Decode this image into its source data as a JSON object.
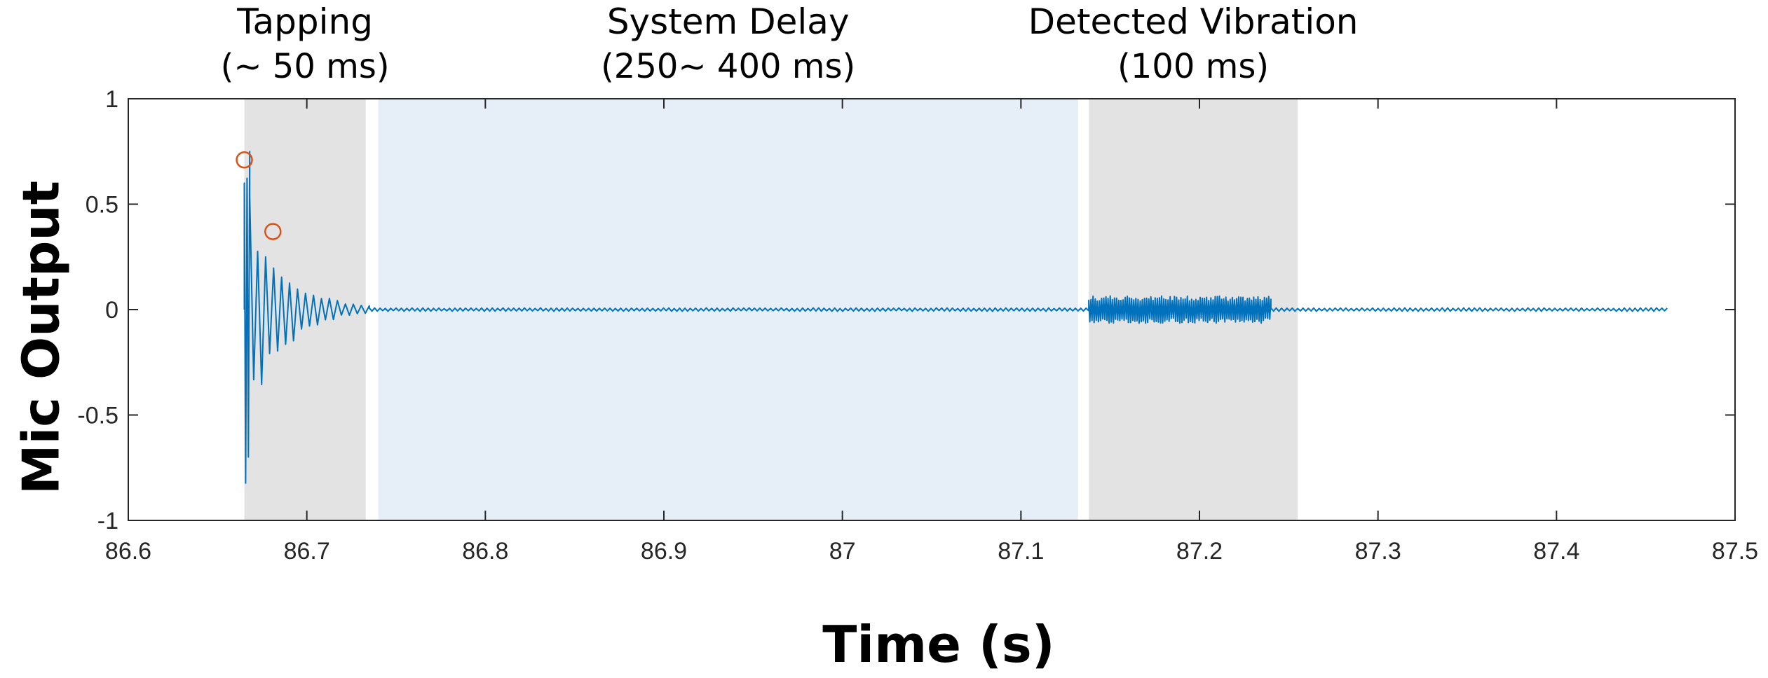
{
  "chart_data": {
    "type": "line",
    "xlabel": "Time (s)",
    "ylabel": "Mic Output",
    "xlim": [
      86.6,
      87.5
    ],
    "ylim": [
      -1,
      1
    ],
    "x_ticks": [
      "86.6",
      "86.7",
      "86.8",
      "86.9",
      "87",
      "87.1",
      "87.2",
      "87.3",
      "87.4",
      "87.5"
    ],
    "y_ticks": [
      "1",
      "0.5",
      "0",
      "-0.5",
      "-1"
    ],
    "grid": false,
    "line_color": "#0072BD",
    "marker_color": "#D95319",
    "regions": [
      {
        "label": "Tapping",
        "sublabel": "(~ 50 ms)",
        "x_start": 86.665,
        "x_end": 86.733,
        "color": "#e3e3e3"
      },
      {
        "label": "System Delay",
        "sublabel": "(250~ 400 ms)",
        "x_start": 86.74,
        "x_end": 87.132,
        "color": "#e6eff8"
      },
      {
        "label": "Detected Vibration",
        "sublabel": "(100 ms)",
        "x_start": 87.138,
        "x_end": 87.255,
        "color": "#e3e3e3"
      }
    ],
    "series": [
      {
        "segments": [
          {
            "x_start": 86.665,
            "x_end": 86.668,
            "peak": 1.0,
            "trough": -0.85,
            "period": 0.0015
          },
          {
            "x_start": 86.668,
            "x_end": 86.735,
            "peak": 0.55,
            "decay": 0.02,
            "period": 0.0045
          },
          {
            "x_start": 86.735,
            "x_end": 87.138,
            "peak": 0.008,
            "period": 0.003
          },
          {
            "x_start": 87.138,
            "x_end": 87.24,
            "peak": 0.065,
            "period": 0.0012
          },
          {
            "x_start": 87.24,
            "x_end": 87.462,
            "peak": 0.008,
            "period": 0.003
          }
        ]
      }
    ],
    "markers": [
      {
        "x": 86.665,
        "y": 0.71
      },
      {
        "x": 86.681,
        "y": 0.37
      }
    ]
  }
}
